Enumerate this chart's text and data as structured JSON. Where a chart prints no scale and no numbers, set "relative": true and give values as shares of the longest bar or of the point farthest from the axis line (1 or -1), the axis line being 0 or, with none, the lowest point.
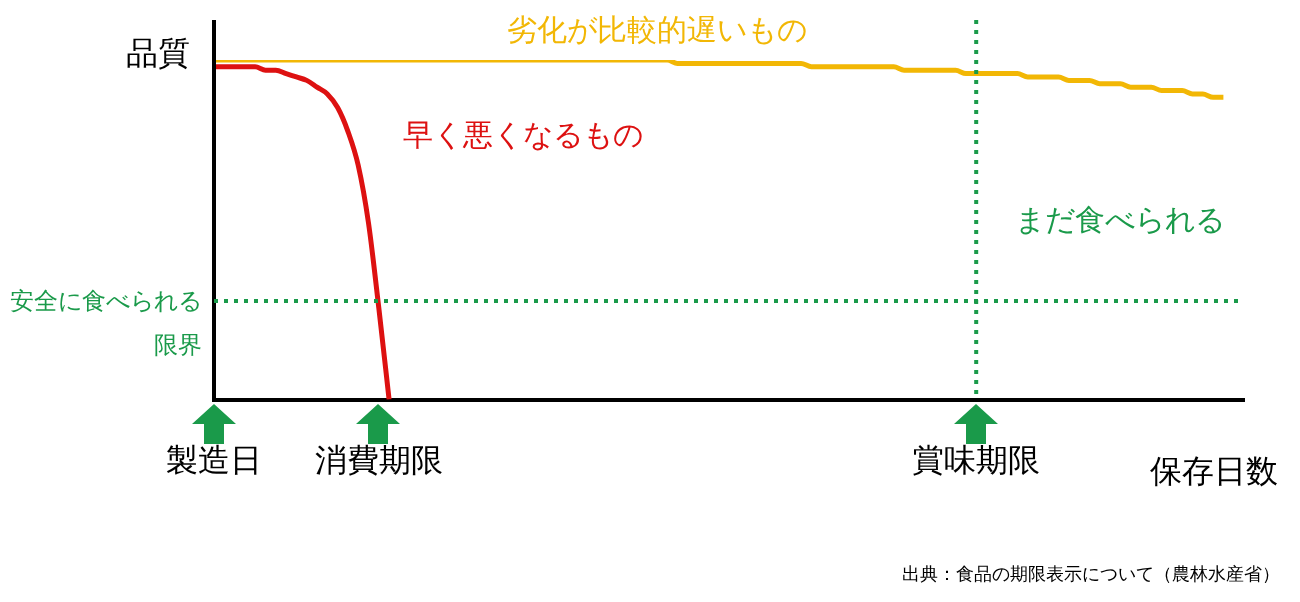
{
  "chart_data": {
    "type": "line",
    "relative": true,
    "ylabel": "品質",
    "xlabel": "保存日数",
    "marker": "none",
    "grid": false,
    "legend": false,
    "categories": [
      "製造日",
      null,
      null,
      null,
      null,
      null,
      null,
      null,
      null,
      null,
      null,
      null,
      null,
      null,
      null,
      null,
      "消費期限",
      null,
      null,
      null,
      null,
      null,
      null,
      null,
      null,
      null,
      null,
      null,
      null,
      null,
      null,
      null,
      null,
      null,
      null,
      null,
      null,
      null,
      null,
      null,
      null,
      null,
      null,
      null,
      null,
      null,
      null,
      null,
      null,
      null,
      null,
      null,
      null,
      null,
      null,
      null,
      null,
      null,
      null,
      null,
      null,
      null,
      null,
      null,
      null,
      null,
      null,
      null,
      null,
      null,
      null,
      null,
      null,
      null,
      "賞味期限",
      null,
      null,
      null,
      null,
      null,
      null,
      null,
      null,
      null,
      null,
      null,
      null,
      null,
      null,
      null,
      null,
      null,
      null,
      null,
      null,
      null,
      null,
      null,
      null,
      null,
      null
    ],
    "series": [
      {
        "name": "劣化が比較的遅いもの",
        "color": "#f2b705",
        "values": [
          1,
          1,
          1,
          1,
          1,
          1,
          1,
          1,
          1,
          1,
          1,
          1,
          1,
          1,
          1,
          1,
          1,
          1,
          1,
          1,
          1,
          1,
          1,
          1,
          1,
          1,
          1,
          1,
          1,
          1,
          1,
          1,
          1,
          1,
          1,
          1,
          1,
          1,
          1,
          1,
          1,
          1,
          1,
          1,
          1,
          0.99,
          0.99,
          0.99,
          0.99,
          0.99,
          0.99,
          0.99,
          0.99,
          0.99,
          0.99,
          0.99,
          0.99,
          0.99,
          0.98,
          0.98,
          0.98,
          0.98,
          0.98,
          0.98,
          0.98,
          0.98,
          0.98,
          0.97,
          0.97,
          0.97,
          0.97,
          0.97,
          0.97,
          0.96,
          0.96,
          0.96,
          0.96,
          0.96,
          0.96,
          0.95,
          0.95,
          0.95,
          0.95,
          0.94,
          0.94,
          0.94,
          0.93,
          0.93,
          0.93,
          0.92,
          0.92,
          0.92,
          0.91,
          0.91,
          0.91,
          0.9,
          0.9,
          0.89,
          0.89,
          null,
          null
        ]
      },
      {
        "name": "早く悪くなるもの",
        "color": "#dd1111",
        "values": [
          0.98,
          0.98,
          0.98,
          0.98,
          0.98,
          0.97,
          0.97,
          0.96,
          0.95,
          0.94,
          0.92,
          0.9,
          0.86,
          0.79,
          0.69,
          0.52,
          0.27,
          0,
          null,
          null,
          null,
          null,
          null,
          null,
          null,
          null,
          null,
          null,
          null,
          null,
          null,
          null,
          null,
          null,
          null,
          null,
          null,
          null,
          null,
          null,
          null,
          null,
          null,
          null,
          null,
          null,
          null,
          null,
          null,
          null,
          null,
          null,
          null,
          null,
          null,
          null,
          null,
          null,
          null,
          null,
          null,
          null,
          null,
          null,
          null,
          null,
          null,
          null,
          null,
          null,
          null,
          null,
          null,
          null,
          null,
          null,
          null,
          null,
          null,
          null,
          null,
          null,
          null,
          null,
          null,
          null,
          null,
          null,
          null,
          null,
          null,
          null,
          null,
          null,
          null,
          null,
          null,
          null,
          null,
          null,
          null
        ]
      }
    ],
    "ref_lines": [
      {
        "axis": "y",
        "value": 0.29,
        "label": "安全に食べられる限界",
        "color": "#1a9a4a",
        "line_style": "dotted"
      },
      {
        "axis": "x",
        "value": "賞味期限",
        "color": "#1a9a4a",
        "line_style": "dotted"
      }
    ],
    "annotations": [
      "まだ食べられる",
      "出典：食品の期限表示について（農林水産省）"
    ]
  }
}
